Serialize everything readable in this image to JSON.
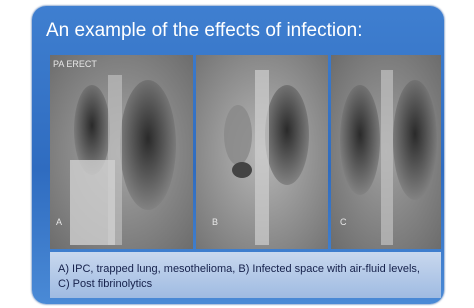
{
  "title": "An example of the effects of infection:",
  "panels": [
    {
      "label": "A",
      "marker": "PA ERECT"
    },
    {
      "label": "B"
    },
    {
      "label": "C"
    }
  ],
  "caption": [
    "A) IPC, trapped lung, mesothelioma, B) Infected space with air-fluid levels,",
    "C) Post fibrinolytics"
  ]
}
